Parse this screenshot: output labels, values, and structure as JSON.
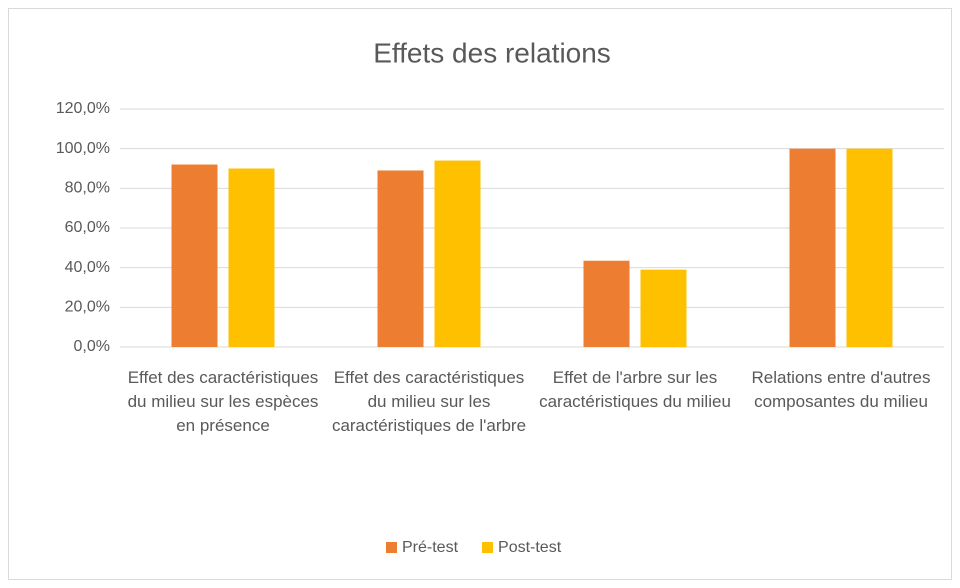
{
  "chart_data": {
    "type": "bar",
    "title": "Effets des relations",
    "categories": [
      "Effet des caractéristiques du milieu sur les espèces en présence",
      "Effet des caractéristiques du milieu sur les caractéristiques de l'arbre",
      "Effet de l'arbre sur les caractéristiques du milieu",
      "Relations entre d'autres composantes du milieu"
    ],
    "series": [
      {
        "name": "Pré-test",
        "color": "#ed7d31",
        "values": [
          92,
          89,
          43.5,
          100
        ]
      },
      {
        "name": "Post-test",
        "color": "#ffc000",
        "values": [
          90,
          94,
          39,
          100
        ]
      }
    ],
    "ylim": [
      0,
      120
    ],
    "yticks": [
      {
        "value": 0,
        "label": "0,0%"
      },
      {
        "value": 20,
        "label": "20,0%"
      },
      {
        "value": 40,
        "label": "40,0%"
      },
      {
        "value": 60,
        "label": "60,0%"
      },
      {
        "value": 80,
        "label": "80,0%"
      },
      {
        "value": 100,
        "label": "100,0%"
      },
      {
        "value": 120,
        "label": "120,0%"
      }
    ],
    "grid": true,
    "legend": "bottom"
  }
}
